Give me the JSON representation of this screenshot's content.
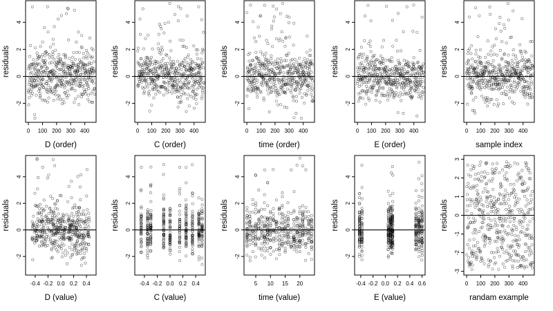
{
  "chart_data": [
    {
      "type": "scatter",
      "xlabel": "D (order)",
      "ylabel": "residuals",
      "xlim": [
        -20,
        480
      ],
      "ylim": [
        -3.4,
        5.6
      ],
      "x_ticks": [
        0,
        100,
        200,
        300,
        400
      ],
      "x_tick_labels": [
        "0",
        "100",
        "200",
        "300",
        "400"
      ],
      "y_ticks": [
        -2,
        0,
        2,
        4
      ],
      "y_tick_labels": [
        "-2",
        "0",
        "2",
        "4"
      ],
      "hline": 0,
      "grid": false,
      "n_points": 470,
      "x_mode": "order",
      "seed": 11
    },
    {
      "type": "scatter",
      "xlabel": "C (order)",
      "ylabel": "residuals",
      "xlim": [
        -20,
        480
      ],
      "ylim": [
        -3.4,
        5.6
      ],
      "x_ticks": [
        0,
        100,
        200,
        300,
        400
      ],
      "x_tick_labels": [
        "0",
        "100",
        "200",
        "300",
        "400"
      ],
      "y_ticks": [
        -2,
        0,
        2,
        4
      ],
      "y_tick_labels": [
        "-2",
        "0",
        "2",
        "4"
      ],
      "hline": 0,
      "grid": false,
      "n_points": 470,
      "x_mode": "order",
      "seed": 23
    },
    {
      "type": "scatter",
      "xlabel": "time (order)",
      "ylabel": "residuals",
      "xlim": [
        -20,
        480
      ],
      "ylim": [
        -3.4,
        5.6
      ],
      "x_ticks": [
        0,
        100,
        200,
        300,
        400
      ],
      "x_tick_labels": [
        "0",
        "100",
        "200",
        "300",
        "400"
      ],
      "y_ticks": [
        -2,
        0,
        2,
        4
      ],
      "y_tick_labels": [
        "-2",
        "0",
        "2",
        "4"
      ],
      "hline": 0,
      "grid": false,
      "n_points": 470,
      "x_mode": "order",
      "seed": 37
    },
    {
      "type": "scatter",
      "xlabel": "E (order)",
      "ylabel": "residuals",
      "xlim": [
        -20,
        480
      ],
      "ylim": [
        -3.4,
        5.6
      ],
      "x_ticks": [
        0,
        100,
        200,
        300,
        400
      ],
      "x_tick_labels": [
        "0",
        "100",
        "200",
        "300",
        "400"
      ],
      "y_ticks": [
        -2,
        0,
        2,
        4
      ],
      "y_tick_labels": [
        "-2",
        "0",
        "2",
        "4"
      ],
      "hline": 0,
      "grid": false,
      "n_points": 470,
      "x_mode": "order",
      "seed": 41
    },
    {
      "type": "scatter",
      "xlabel": "sample index",
      "ylabel": "residuals",
      "xlim": [
        -20,
        480
      ],
      "ylim": [
        -3.4,
        5.6
      ],
      "x_ticks": [
        0,
        100,
        200,
        300,
        400
      ],
      "x_tick_labels": [
        "0",
        "100",
        "200",
        "300",
        "400"
      ],
      "y_ticks": [
        -2,
        0,
        2,
        4
      ],
      "y_tick_labels": [
        "-2",
        "0",
        "2",
        "4"
      ],
      "hline": 0,
      "grid": false,
      "n_points": 470,
      "x_mode": "order",
      "seed": 53
    },
    {
      "type": "scatter",
      "xlabel": "D (value)",
      "ylabel": "residuals",
      "xlim": [
        -0.55,
        0.55
      ],
      "ylim": [
        -3.4,
        5.6
      ],
      "x_ticks": [
        -0.4,
        -0.2,
        0.0,
        0.2,
        0.4
      ],
      "x_tick_labels": [
        "-0.4",
        "-0.2",
        "0.0",
        "0.2",
        "0.4"
      ],
      "y_ticks": [
        -2,
        0,
        2,
        4
      ],
      "y_tick_labels": [
        "-2",
        "0",
        "2",
        "4"
      ],
      "hline": 0,
      "grid": false,
      "n_points": 470,
      "x_mode": "continuous",
      "x_range": [
        -0.45,
        0.45
      ],
      "seed": 67
    },
    {
      "type": "scatter",
      "xlabel": "C (value)",
      "ylabel": "residuals",
      "xlim": [
        -0.55,
        0.55
      ],
      "ylim": [
        -3.4,
        5.6
      ],
      "x_ticks": [
        -0.4,
        -0.2,
        0.0,
        0.2,
        0.4
      ],
      "x_tick_labels": [
        "-0.4",
        "-0.2",
        "0.0",
        "0.2",
        "0.4"
      ],
      "y_ticks": [
        -2,
        0,
        2,
        4
      ],
      "y_tick_labels": [
        "-2",
        "0",
        "2",
        "4"
      ],
      "hline": 0,
      "grid": false,
      "n_points": 470,
      "x_mode": "discrete",
      "x_levels": [
        -0.45,
        -0.35,
        -0.3,
        -0.1,
        0.0,
        0.15,
        0.25,
        0.35,
        0.45,
        0.5
      ],
      "seed": 71
    },
    {
      "type": "scatter",
      "xlabel": "time (value)",
      "ylabel": "residuals",
      "xlim": [
        1,
        25
      ],
      "ylim": [
        -3.4,
        5.6
      ],
      "x_ticks": [
        5,
        10,
        15,
        20
      ],
      "x_tick_labels": [
        "5",
        "10",
        "15",
        "20"
      ],
      "y_ticks": [
        -2,
        0,
        2,
        4
      ],
      "y_tick_labels": [
        "-2",
        "0",
        "2",
        "4"
      ],
      "hline": 0,
      "grid": false,
      "n_points": 470,
      "x_mode": "discrete",
      "x_levels": [
        2,
        3,
        4,
        5,
        6,
        7,
        8,
        9,
        10,
        11,
        12,
        13,
        14,
        15,
        16,
        17,
        18,
        19,
        20,
        21,
        22,
        23,
        24
      ],
      "seed": 83
    },
    {
      "type": "scatter",
      "xlabel": "E (value)",
      "ylabel": "residuals",
      "xlim": [
        -0.5,
        0.65
      ],
      "ylim": [
        -3.4,
        5.6
      ],
      "x_ticks": [
        -0.4,
        -0.2,
        0.0,
        0.2,
        0.4,
        0.6
      ],
      "x_tick_labels": [
        "-0.4",
        "-0.2",
        "0.0",
        "0.2",
        "0.4",
        "0.6"
      ],
      "y_ticks": [
        -2,
        0,
        2,
        4
      ],
      "y_tick_labels": [
        "-2",
        "0",
        "2",
        "4"
      ],
      "hline": 0,
      "grid": false,
      "n_points": 470,
      "x_mode": "discrete",
      "x_levels": [
        -0.42,
        -0.38,
        0.05,
        0.08,
        0.1,
        0.12,
        0.5,
        0.55,
        0.6
      ],
      "seed": 97
    },
    {
      "type": "scatter",
      "xlabel": "randam example",
      "ylabel": "residuals",
      "xlim": [
        -20,
        480
      ],
      "ylim": [
        -3.2,
        3.2
      ],
      "x_ticks": [
        0,
        100,
        200,
        300,
        400
      ],
      "x_tick_labels": [
        "0",
        "100",
        "200",
        "300",
        "400"
      ],
      "y_ticks": [
        -3,
        -2,
        -1,
        0,
        1,
        2,
        3
      ],
      "y_tick_labels": [
        "-3",
        "-2",
        "-1",
        "0",
        "1",
        "2",
        "3"
      ],
      "hline": 0,
      "grid": false,
      "n_points": 470,
      "x_mode": "order",
      "uniform": true,
      "seed": 101
    }
  ]
}
